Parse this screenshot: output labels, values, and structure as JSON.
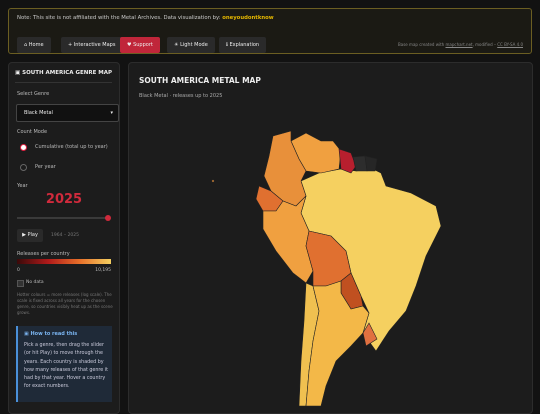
{
  "banner": {
    "note": "Note: This site is not affiliated with the Metal Archives. Data visualization by:",
    "author": "oneyoudontknow"
  },
  "nav": [
    "Home",
    "Interactive Maps",
    "Support",
    "Light Mode",
    "Explanation"
  ],
  "credit": {
    "prefix": "Base map created with",
    "link": "mapchart.net",
    "middle": ", modified –",
    "license": "CC BY-SA 4.0"
  },
  "sidebar": {
    "title": "SOUTH AMERICA GENRE MAP",
    "genre_label": "Select Genre",
    "genre": "Black Metal",
    "mode_label": "Count Mode",
    "modes": [
      "Cumulative (total up to year)",
      "Per year"
    ],
    "year_label": "Year",
    "year": "2025",
    "play": "Play",
    "range": "1964 – 2025",
    "legend_title": "Releases per country",
    "legend_min": "0",
    "legend_max": "10,195",
    "no_data": "No data",
    "note": "Hotter colours = more releases (log scale). The scale is fixed across all years for the chosen genre, so countries visibly heat up as the scene grows.",
    "info_title": "How to read this",
    "info_text": "Pick a genre, then drag the slider (or hit Play) to move through the years. Each country is shaded by how many releases of that genre it had by that year. Hover a country for exact numbers."
  },
  "main": {
    "title": "SOUTH AMERICA METAL MAP",
    "subtitle": "Black Metal · releases up to 2025"
  }
}
